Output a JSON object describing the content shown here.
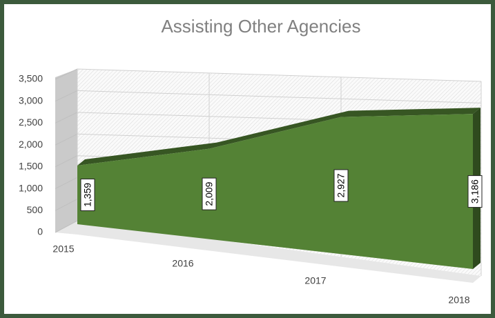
{
  "chart_data": {
    "type": "area",
    "title": "Assisting Other Agencies",
    "categories": [
      "2015",
      "2016",
      "2017",
      "2018"
    ],
    "values": [
      1359,
      2009,
      2927,
      3186
    ],
    "value_labels": [
      "1,359",
      "2,009",
      "2,927",
      "3,186"
    ],
    "color": "#548235",
    "ylim": [
      0,
      3500
    ],
    "yticks": [
      0,
      500,
      {
        "value": 1000,
        "label": "1,000"
      },
      {
        "value": 1500,
        "label": "1,500"
      },
      {
        "value": 2000,
        "label": "2,000"
      },
      {
        "value": 2500,
        "label": "2,500"
      },
      {
        "value": 3000,
        "label": "3,000"
      },
      {
        "value": 3500,
        "label": "3,500"
      }
    ],
    "grid": true
  }
}
